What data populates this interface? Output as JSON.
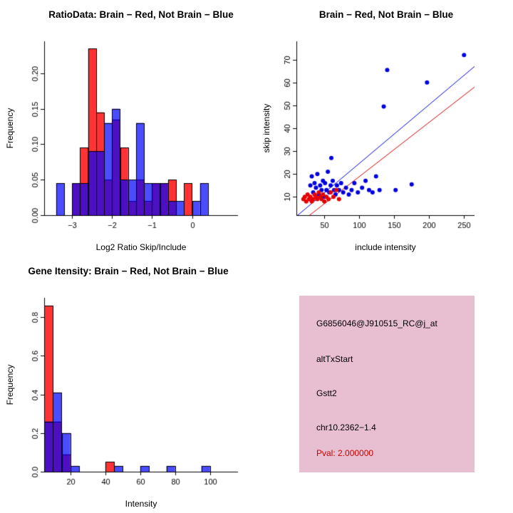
{
  "chart_data": [
    {
      "id": "ratio_hist",
      "type": "histogram",
      "title": "RatioData: Brain − Red, Not Brain − Blue",
      "xlabel": "Log2 Ratio Skip/Include",
      "ylabel": "Frequency",
      "xlim": [
        -3.7,
        1.15
      ],
      "ylim": [
        0,
        0.245
      ],
      "xticks": [
        -3,
        -2,
        -1,
        0
      ],
      "yticks": [
        0,
        0.05,
        0.1,
        0.15,
        0.2
      ],
      "x_decimals": 0,
      "y_decimals": 2,
      "bin_width": 0.2,
      "legend": [
        {
          "name": "Brain",
          "color": "red"
        },
        {
          "name": "Not Brain",
          "color": "blue"
        }
      ],
      "series": [
        {
          "name": "Brain",
          "fill": "rgba(255,0,0,0.8)",
          "bins": [
            [
              -3.0,
              0.045
            ],
            [
              -2.8,
              0.095
            ],
            [
              -2.6,
              0.235
            ],
            [
              -2.4,
              0.145
            ],
            [
              -2.2,
              0.05
            ],
            [
              -2.0,
              0.135
            ],
            [
              -1.8,
              0.095
            ],
            [
              -1.6,
              0.02
            ],
            [
              -1.4,
              0.05
            ],
            [
              -1.2,
              0.02
            ],
            [
              -1.0,
              0.045
            ],
            [
              -0.8,
              0.045
            ],
            [
              -0.6,
              0.05
            ],
            [
              -0.2,
              0.045
            ]
          ]
        },
        {
          "name": "Not Brain",
          "fill": "rgba(0,0,255,0.7)",
          "bins": [
            [
              -3.4,
              0.045
            ],
            [
              -3.0,
              0.045
            ],
            [
              -2.8,
              0.045
            ],
            [
              -2.6,
              0.09
            ],
            [
              -2.4,
              0.09
            ],
            [
              -2.2,
              0.13
            ],
            [
              -2.0,
              0.15
            ],
            [
              -1.8,
              0.05
            ],
            [
              -1.6,
              0.05
            ],
            [
              -1.4,
              0.13
            ],
            [
              -1.2,
              0.045
            ],
            [
              -1.0,
              0.045
            ],
            [
              -0.8,
              0.045
            ],
            [
              -0.6,
              0.02
            ],
            [
              -0.4,
              0.02
            ],
            [
              0.0,
              0.02
            ],
            [
              0.2,
              0.045
            ]
          ]
        }
      ]
    },
    {
      "id": "scatter",
      "type": "scatter",
      "title": "Brain − Red, Not Brain − Blue",
      "xlabel": "include intensity",
      "ylabel": "skip intensity",
      "xlim": [
        10,
        265
      ],
      "ylim": [
        2,
        78
      ],
      "xticks": [
        50,
        100,
        150,
        200,
        250
      ],
      "yticks": [
        10,
        20,
        30,
        40,
        50,
        60,
        70
      ],
      "x_decimals": 0,
      "y_decimals": 0,
      "series": [
        {
          "name": "Not Brain",
          "color": "#0000e0",
          "points": [
            [
              30,
              15
            ],
            [
              32,
              19
            ],
            [
              34,
              12
            ],
            [
              36,
              16
            ],
            [
              38,
              14
            ],
            [
              40,
              20
            ],
            [
              42,
              11
            ],
            [
              44,
              15
            ],
            [
              46,
              13
            ],
            [
              48,
              17
            ],
            [
              50,
              10
            ],
            [
              51,
              16
            ],
            [
              53,
              13
            ],
            [
              55,
              21
            ],
            [
              57,
              12
            ],
            [
              59,
              15
            ],
            [
              60,
              27
            ],
            [
              62,
              17
            ],
            [
              64,
              13
            ],
            [
              66,
              11
            ],
            [
              68,
              15
            ],
            [
              71,
              13
            ],
            [
              74,
              16
            ],
            [
              77,
              12
            ],
            [
              81,
              14
            ],
            [
              85,
              11
            ],
            [
              89,
              13
            ],
            [
              93,
              16
            ],
            [
              98,
              12
            ],
            [
              104,
              14
            ],
            [
              109,
              17
            ],
            [
              114,
              13
            ],
            [
              119,
              12
            ],
            [
              124,
              19
            ],
            [
              129,
              13
            ],
            [
              135,
              49.5
            ],
            [
              140,
              65.5
            ],
            [
              152,
              13
            ],
            [
              175,
              15.5
            ],
            [
              197,
              60
            ],
            [
              250,
              72
            ]
          ]
        },
        {
          "name": "Brain",
          "color": "#e60000",
          "points": [
            [
              20,
              9
            ],
            [
              22,
              10
            ],
            [
              24,
              8
            ],
            [
              26,
              11
            ],
            [
              28,
              9
            ],
            [
              30,
              10
            ],
            [
              32,
              8
            ],
            [
              34,
              9
            ],
            [
              36,
              11
            ],
            [
              38,
              10
            ],
            [
              40,
              9
            ],
            [
              42,
              12
            ],
            [
              44,
              10
            ],
            [
              46,
              9
            ],
            [
              48,
              11
            ],
            [
              50,
              8
            ],
            [
              53,
              10
            ],
            [
              56,
              9
            ],
            [
              59,
              12
            ],
            [
              63,
              10
            ],
            [
              67,
              13
            ],
            [
              71,
              9
            ]
          ]
        }
      ],
      "lines": [
        {
          "name": "not-brain-fit",
          "color": "#0000cc",
          "x1": 10,
          "y1": 1.5,
          "x2": 265,
          "y2": 67
        },
        {
          "name": "brain-fit",
          "color": "#cc0000",
          "x1": 10,
          "y1": -2.5,
          "x2": 265,
          "y2": 58
        }
      ]
    },
    {
      "id": "gene_hist",
      "type": "histogram",
      "title": "Gene Itensity: Brain − Red, Not Brain − Blue",
      "xlabel": "Intensity",
      "ylabel": "Frequency",
      "xlim": [
        5,
        116
      ],
      "ylim": [
        0,
        0.9
      ],
      "xticks": [
        20,
        40,
        60,
        80,
        100
      ],
      "yticks": [
        0,
        0.2,
        0.4,
        0.6,
        0.8
      ],
      "x_decimals": 0,
      "y_decimals": 1,
      "bin_width": 5,
      "series": [
        {
          "name": "Brain",
          "fill": "rgba(255,0,0,0.8)",
          "bins": [
            [
              5,
              0.86
            ],
            [
              10,
              0.26
            ],
            [
              15,
              0.09
            ],
            [
              40,
              0.05
            ]
          ]
        },
        {
          "name": "Not Brain",
          "fill": "rgba(0,0,255,0.7)",
          "bins": [
            [
              5,
              0.26
            ],
            [
              10,
              0.41
            ],
            [
              15,
              0.2
            ],
            [
              20,
              0.03
            ],
            [
              45,
              0.03
            ],
            [
              60,
              0.03
            ],
            [
              75,
              0.03
            ],
            [
              95,
              0.03
            ]
          ]
        }
      ]
    }
  ],
  "info": {
    "background": "#e8bfd1",
    "lines": [
      {
        "text": "G6856046@J910515_RC@j_at",
        "color": "#000000"
      },
      {
        "text": "altTxStart",
        "color": "#000000"
      },
      {
        "text": "Gstt2",
        "color": "#000000"
      },
      {
        "text": "chr10.2362−1.4",
        "color": "#000000"
      },
      {
        "text": "Pval: 2.000000",
        "color": "#cc0000"
      }
    ]
  },
  "colors": {
    "brain": "#ff0000",
    "not_brain": "#0000ff",
    "overlap": "#6f19b3",
    "axis": "#000000",
    "background": "#ffffff"
  }
}
